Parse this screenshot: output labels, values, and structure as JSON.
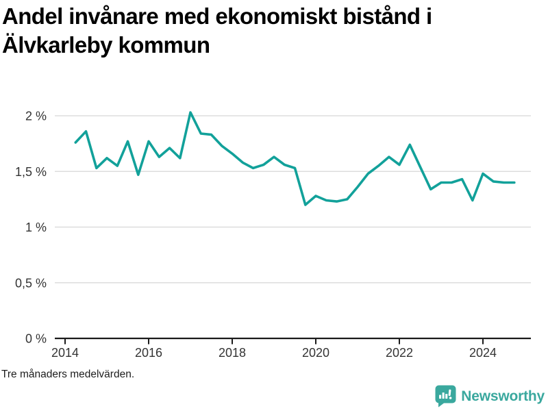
{
  "title": {
    "line1": "Andel invånare med ekonomiskt bistånd i",
    "line2": "Älvkarleby kommun"
  },
  "footnote": "Tre månaders medelvärden.",
  "branding": {
    "label": "Newsworthy",
    "icon": "newsworthy-speech-bubble-bar-chart-icon",
    "color": "#3aa89e"
  },
  "colors": {
    "line": "#12a19a",
    "grid": "#dddddd",
    "axis": "#1a1a1a",
    "tick_text": "#333333",
    "title_text": "#000000"
  },
  "chart_data": {
    "type": "line",
    "title": "Andel invånare med ekonomiskt bistånd i Älvkarleby kommun",
    "footnote": "Tre månaders medelvärden.",
    "unit": "%",
    "decimal_style": "comma",
    "grid": "on",
    "legend": "none",
    "xlim": [
      2013.75,
      2025.15
    ],
    "ylim": [
      0,
      2.15
    ],
    "y_ticks": [
      {
        "value": 0,
        "label": "0 %"
      },
      {
        "value": 0.5,
        "label": "0,5 %"
      },
      {
        "value": 1,
        "label": "1 %"
      },
      {
        "value": 1.5,
        "label": "1,5 %"
      },
      {
        "value": 2,
        "label": "2 %"
      }
    ],
    "x_ticks": [
      {
        "value": 2014,
        "label": "2014"
      },
      {
        "value": 2016,
        "label": "2016"
      },
      {
        "value": 2018,
        "label": "2018"
      },
      {
        "value": 2020,
        "label": "2020"
      },
      {
        "value": 2022,
        "label": "2022"
      },
      {
        "value": 2024,
        "label": "2024"
      }
    ],
    "series": [
      {
        "name": "Andel invånare med ekonomiskt bistånd",
        "color": "#12a19a",
        "points": [
          {
            "date": "2014-04",
            "value": 1.76
          },
          {
            "date": "2014-07",
            "value": 1.86
          },
          {
            "date": "2014-10",
            "value": 1.53
          },
          {
            "date": "2015-01",
            "value": 1.62
          },
          {
            "date": "2015-04",
            "value": 1.55
          },
          {
            "date": "2015-07",
            "value": 1.77
          },
          {
            "date": "2015-10",
            "value": 1.47
          },
          {
            "date": "2016-01",
            "value": 1.77
          },
          {
            "date": "2016-04",
            "value": 1.63
          },
          {
            "date": "2016-07",
            "value": 1.71
          },
          {
            "date": "2016-10",
            "value": 1.62
          },
          {
            "date": "2017-01",
            "value": 2.03
          },
          {
            "date": "2017-04",
            "value": 1.84
          },
          {
            "date": "2017-07",
            "value": 1.83
          },
          {
            "date": "2017-10",
            "value": 1.73
          },
          {
            "date": "2018-01",
            "value": 1.66
          },
          {
            "date": "2018-04",
            "value": 1.58
          },
          {
            "date": "2018-07",
            "value": 1.53
          },
          {
            "date": "2018-10",
            "value": 1.56
          },
          {
            "date": "2019-01",
            "value": 1.63
          },
          {
            "date": "2019-04",
            "value": 1.56
          },
          {
            "date": "2019-07",
            "value": 1.53
          },
          {
            "date": "2019-10",
            "value": 1.2
          },
          {
            "date": "2020-01",
            "value": 1.28
          },
          {
            "date": "2020-04",
            "value": 1.24
          },
          {
            "date": "2020-07",
            "value": 1.23
          },
          {
            "date": "2020-10",
            "value": 1.25
          },
          {
            "date": "2021-01",
            "value": 1.36
          },
          {
            "date": "2021-04",
            "value": 1.48
          },
          {
            "date": "2021-07",
            "value": 1.55
          },
          {
            "date": "2021-10",
            "value": 1.63
          },
          {
            "date": "2022-01",
            "value": 1.56
          },
          {
            "date": "2022-04",
            "value": 1.74
          },
          {
            "date": "2022-07",
            "value": 1.54
          },
          {
            "date": "2022-10",
            "value": 1.34
          },
          {
            "date": "2023-01",
            "value": 1.4
          },
          {
            "date": "2023-04",
            "value": 1.4
          },
          {
            "date": "2023-07",
            "value": 1.43
          },
          {
            "date": "2023-10",
            "value": 1.24
          },
          {
            "date": "2024-01",
            "value": 1.48
          },
          {
            "date": "2024-04",
            "value": 1.41
          },
          {
            "date": "2024-07",
            "value": 1.4
          },
          {
            "date": "2024-10",
            "value": 1.4
          }
        ]
      }
    ]
  }
}
